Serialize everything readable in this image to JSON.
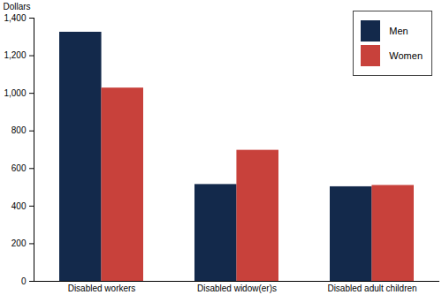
{
  "chart_data": {
    "type": "bar",
    "categories": [
      "Disabled workers",
      "Disabled widow(er)s",
      "Disabled adult children"
    ],
    "series": [
      {
        "name": "Men",
        "color": "#13294b",
        "values": [
          1325,
          515,
          503
        ]
      },
      {
        "name": "Women",
        "color": "#c8413b",
        "values": [
          1028,
          697,
          510
        ]
      }
    ],
    "y_label": "Dollars",
    "ylim": [
      0,
      1400
    ],
    "yticks": [
      0,
      200,
      400,
      600,
      800,
      {
        "value": 1000,
        "label": "1,000"
      },
      {
        "value": 1200,
        "label": "1,200"
      },
      {
        "value": 1400,
        "label": "1,400"
      }
    ],
    "legend": "top-right"
  }
}
